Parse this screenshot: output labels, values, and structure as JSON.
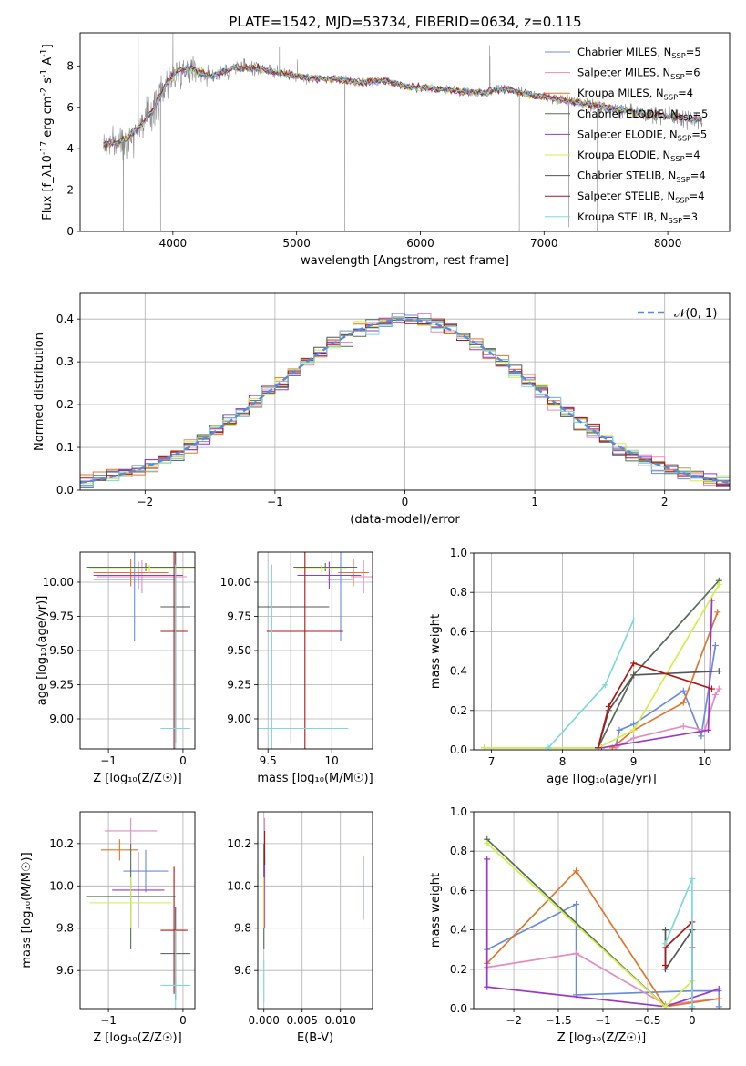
{
  "figure": {
    "title": "PLATE=1542, MJD=53734, FIBERID=0634, z=0.115"
  },
  "models": [
    {
      "name": "Chabrier MILES, N_{SSP}=5",
      "color": "#6a8cde"
    },
    {
      "name": "Salpeter MILES, N_{SSP}=6",
      "color": "#e58bbf"
    },
    {
      "name": "Kroupa MILES, N_{SSP}=4",
      "color": "#e0752a"
    },
    {
      "name": "Chabrier ELODIE, N_{SSP}=5",
      "color": "#546e59"
    },
    {
      "name": "Salpeter ELODIE, N_{SSP}=5",
      "color": "#9b38c7"
    },
    {
      "name": "Kroupa ELODIE, N_{SSP}=4",
      "color": "#d4ee4a"
    },
    {
      "name": "Chabrier STELIB, N_{SSP}=4",
      "color": "#555555"
    },
    {
      "name": "Salpeter STELIB, N_{SSP}=4",
      "color": "#b01515"
    },
    {
      "name": "Kroupa STELIB, N_{SSP}=3",
      "color": "#7dd8e0"
    }
  ],
  "chart_data": [
    {
      "id": "spectrum",
      "type": "line",
      "xlabel": "wavelength [Angstrom, rest frame]",
      "ylabel": "Flux [f_λ10^{-17} erg cm^{-2} s^{-1} A^{-1}]",
      "xlim": [
        3250,
        8500
      ],
      "ylim": [
        0,
        9.6
      ],
      "xticks": [
        4000,
        5000,
        6000,
        7000,
        8000
      ],
      "yticks": [
        0,
        2,
        4,
        6,
        8
      ],
      "grid": false,
      "legend": "top-right",
      "data_color": "#888888",
      "continuum": [
        [
          3450,
          4.2
        ],
        [
          3550,
          4.3
        ],
        [
          3650,
          4.6
        ],
        [
          3750,
          5.2
        ],
        [
          3850,
          6.0
        ],
        [
          3950,
          7.2
        ],
        [
          4050,
          7.8
        ],
        [
          4150,
          7.9
        ],
        [
          4300,
          7.5
        ],
        [
          4500,
          7.9
        ],
        [
          4700,
          7.9
        ],
        [
          4900,
          7.6
        ],
        [
          5100,
          7.4
        ],
        [
          5300,
          7.4
        ],
        [
          5500,
          7.2
        ],
        [
          5700,
          7.3
        ],
        [
          5900,
          7.0
        ],
        [
          6100,
          6.9
        ],
        [
          6300,
          6.8
        ],
        [
          6500,
          6.7
        ],
        [
          6700,
          6.9
        ],
        [
          6900,
          6.6
        ],
        [
          7100,
          6.4
        ],
        [
          7300,
          6.2
        ],
        [
          7500,
          6.0
        ],
        [
          7700,
          5.8
        ],
        [
          7900,
          5.6
        ],
        [
          8100,
          5.5
        ],
        [
          8300,
          5.4
        ]
      ],
      "noise_sigma": [
        [
          3400,
          0.8
        ],
        [
          3800,
          1.2
        ],
        [
          4300,
          0.6
        ],
        [
          5000,
          0.3
        ],
        [
          6000,
          0.15
        ],
        [
          7000,
          0.3
        ],
        [
          8300,
          0.6
        ]
      ],
      "spikes": [
        [
          3600,
          0
        ],
        [
          3900,
          0
        ],
        [
          5390,
          0
        ],
        [
          6800,
          0
        ],
        [
          7430,
          0
        ],
        [
          7200,
          0.2
        ],
        [
          6560,
          9.0
        ],
        [
          3720,
          9.4
        ],
        [
          4000,
          9.6
        ]
      ],
      "emission": [
        [
          4861,
          8.9
        ],
        [
          5007,
          8.3
        ],
        [
          6563,
          8.5
        ]
      ]
    },
    {
      "id": "residuals",
      "type": "histogram",
      "xlabel": "(data-model)/error",
      "ylabel": "Normed distribution",
      "xlim": [
        -2.5,
        2.5
      ],
      "ylim": [
        0,
        0.46
      ],
      "xticks": [
        -2,
        -1,
        0,
        1,
        2
      ],
      "yticks": [
        0.0,
        0.1,
        0.2,
        0.3,
        0.4
      ],
      "grid": true,
      "bin_width": 0.1,
      "curve_label": "𝒩(0, 1)",
      "curve_color": "#5b8bd6",
      "legend": "top-right"
    },
    {
      "id": "age_vs_Z",
      "type": "scatter",
      "xlabel": "Z [log₁₀(Z/Z☉)]",
      "ylabel": "age  [log₁₀(age/yr)]",
      "xlim": [
        -1.38,
        0.16
      ],
      "ylim": [
        8.78,
        10.22
      ],
      "xticks": [
        -1,
        0
      ],
      "yticks": [
        9.0,
        9.25,
        9.5,
        9.75,
        10.0
      ],
      "grid": true,
      "points": [
        {
          "model": 0,
          "x": -0.65,
          "xerr": 0.55,
          "y": 10.02,
          "yerr": 0.45
        },
        {
          "model": 1,
          "x": -0.55,
          "xerr": 0.6,
          "y": 10.04,
          "yerr": 0.12
        },
        {
          "model": 2,
          "x": -0.7,
          "xerr": 0.5,
          "y": 10.07,
          "yerr": 0.1
        },
        {
          "model": 3,
          "x": -0.5,
          "xerr": 0.8,
          "y": 10.11,
          "yerr": 0.03
        },
        {
          "model": 4,
          "x": -0.6,
          "xerr": 0.6,
          "y": 10.05,
          "yerr": 0.1
        },
        {
          "model": 5,
          "x": -0.45,
          "xerr": 0.8,
          "y": 10.1,
          "yerr": 0.03
        },
        {
          "model": 6,
          "x": -0.1,
          "xerr": 0.2,
          "y": 9.82,
          "yerr": 1.0
        },
        {
          "model": 7,
          "x": -0.12,
          "xerr": 0.18,
          "y": 9.64,
          "yerr": 1.0
        },
        {
          "model": 8,
          "x": -0.1,
          "xerr": 0.2,
          "y": 8.93,
          "yerr": 1.2
        }
      ]
    },
    {
      "id": "age_vs_mass",
      "type": "scatter",
      "xlabel": "mass [log₁₀(M/M☉)]",
      "ylabel": "",
      "xlim": [
        9.42,
        10.32
      ],
      "ylim": [
        8.78,
        10.22
      ],
      "xticks": [
        9.5,
        10.0
      ],
      "yticks": [
        9.0,
        9.25,
        9.5,
        9.75,
        10.0
      ],
      "grid": true,
      "points": [
        {
          "model": 0,
          "x": 10.07,
          "xerr": 0.1,
          "y": 10.02,
          "yerr": 0.45
        },
        {
          "model": 1,
          "x": 10.25,
          "xerr": 0.1,
          "y": 10.04,
          "yerr": 0.12
        },
        {
          "model": 2,
          "x": 10.17,
          "xerr": 0.12,
          "y": 10.07,
          "yerr": 0.1
        },
        {
          "model": 3,
          "x": 9.95,
          "xerr": 0.25,
          "y": 10.11,
          "yerr": 0.03
        },
        {
          "model": 4,
          "x": 9.98,
          "xerr": 0.25,
          "y": 10.05,
          "yerr": 0.1
        },
        {
          "model": 5,
          "x": 9.92,
          "xerr": 0.2,
          "y": 10.1,
          "yerr": 0.03
        },
        {
          "model": 6,
          "x": 9.68,
          "xerr": 0.3,
          "y": 9.82,
          "yerr": 1.0
        },
        {
          "model": 7,
          "x": 9.79,
          "xerr": 0.3,
          "y": 9.64,
          "yerr": 1.0
        },
        {
          "model": 8,
          "x": 9.53,
          "xerr": 0.6,
          "y": 8.93,
          "yerr": 1.2
        }
      ]
    },
    {
      "id": "mass_weight_vs_age",
      "type": "line",
      "xlabel": "age  [log₁₀(age/yr)]",
      "ylabel": "mass weight",
      "xlim": [
        6.75,
        10.35
      ],
      "ylim": [
        0,
        1.0
      ],
      "xticks": [
        7,
        8,
        9,
        10
      ],
      "yticks": [
        0.0,
        0.2,
        0.4,
        0.6,
        0.8,
        1.0
      ],
      "grid": true,
      "series": [
        {
          "model": 0,
          "points": [
            [
              8.75,
              0.02
            ],
            [
              8.8,
              0.1
            ],
            [
              9.0,
              0.13
            ],
            [
              9.7,
              0.3
            ],
            [
              9.95,
              0.07
            ],
            [
              10.15,
              0.53
            ]
          ]
        },
        {
          "model": 1,
          "points": [
            [
              8.75,
              0.01
            ],
            [
              9.0,
              0.06
            ],
            [
              9.7,
              0.12
            ],
            [
              10.0,
              0.1
            ],
            [
              10.15,
              0.28
            ],
            [
              10.2,
              0.31
            ]
          ]
        },
        {
          "model": 2,
          "points": [
            [
              8.7,
              0.01
            ],
            [
              9.0,
              0.1
            ],
            [
              9.7,
              0.24
            ],
            [
              10.18,
              0.7
            ]
          ]
        },
        {
          "model": 3,
          "points": [
            [
              6.9,
              0.01
            ],
            [
              8.5,
              0.01
            ],
            [
              9.0,
              0.38
            ],
            [
              10.2,
              0.86
            ]
          ]
        },
        {
          "model": 4,
          "points": [
            [
              8.55,
              0.01
            ],
            [
              10.05,
              0.1
            ],
            [
              10.1,
              0.76
            ]
          ]
        },
        {
          "model": 5,
          "points": [
            [
              6.9,
              0.01
            ],
            [
              8.5,
              0.01
            ],
            [
              9.0,
              0.1
            ],
            [
              10.2,
              0.84
            ]
          ]
        },
        {
          "model": 6,
          "points": [
            [
              8.5,
              0.01
            ],
            [
              8.65,
              0.2
            ],
            [
              9.0,
              0.38
            ],
            [
              10.2,
              0.4
            ]
          ]
        },
        {
          "model": 7,
          "points": [
            [
              8.5,
              0.01
            ],
            [
              8.65,
              0.22
            ],
            [
              9.0,
              0.44
            ],
            [
              10.1,
              0.31
            ]
          ]
        },
        {
          "model": 8,
          "points": [
            [
              7.8,
              0.01
            ],
            [
              8.6,
              0.33
            ],
            [
              9.0,
              0.66
            ]
          ]
        }
      ]
    },
    {
      "id": "mass_vs_Z",
      "type": "scatter",
      "xlabel": "Z [log₁₀(Z/Z☉)]",
      "ylabel": "mass [log₁₀(M/M☉)]",
      "xlim": [
        -1.38,
        0.16
      ],
      "ylim": [
        9.42,
        10.35
      ],
      "xticks": [
        -1,
        0
      ],
      "yticks": [
        9.6,
        9.8,
        10.0,
        10.2
      ],
      "grid": true,
      "points": [
        {
          "model": 0,
          "x": -0.5,
          "xerr": 0.3,
          "y": 10.07,
          "yerr": 0.1
        },
        {
          "model": 1,
          "x": -0.7,
          "xerr": 0.35,
          "y": 10.26,
          "yerr": 0.06
        },
        {
          "model": 2,
          "x": -0.85,
          "xerr": 0.25,
          "y": 10.17,
          "yerr": 0.05
        },
        {
          "model": 3,
          "x": -0.7,
          "xerr": 0.6,
          "y": 9.95,
          "yerr": 0.25
        },
        {
          "model": 4,
          "x": -0.6,
          "xerr": 0.35,
          "y": 9.98,
          "yerr": 0.18
        },
        {
          "model": 5,
          "x": -0.7,
          "xerr": 0.55,
          "y": 9.92,
          "yerr": 0.12
        },
        {
          "model": 6,
          "x": -0.1,
          "xerr": 0.2,
          "y": 9.68,
          "yerr": 0.22
        },
        {
          "model": 7,
          "x": -0.12,
          "xerr": 0.18,
          "y": 9.79,
          "yerr": 0.3
        },
        {
          "model": 8,
          "x": -0.1,
          "xerr": 0.2,
          "y": 9.53,
          "yerr": 0.26
        }
      ]
    },
    {
      "id": "mass_vs_ebv",
      "type": "scatter",
      "xlabel": "E(B-V)",
      "ylabel": "",
      "xlim": [
        -0.0008,
        0.0142
      ],
      "ylim": [
        9.42,
        10.35
      ],
      "xticks": [
        0.0,
        0.005,
        0.01
      ],
      "xticklabels": [
        "0.000",
        "0.005",
        "0.010"
      ],
      "yticks": [
        9.6,
        9.8,
        10.0,
        10.2
      ],
      "grid": true,
      "points": [
        {
          "model": 0,
          "x": 0.013,
          "xerr": 0,
          "y": 9.99,
          "yerr": 0.15
        },
        {
          "model": 1,
          "x": 0.0001,
          "xerr": 0,
          "y": 10.26,
          "yerr": 0.06
        },
        {
          "model": 3,
          "x": 0.0,
          "xerr": 0,
          "y": 9.95,
          "yerr": 0.25
        },
        {
          "model": 4,
          "x": 0.0001,
          "xerr": 0,
          "y": 9.98,
          "yerr": 0.18
        },
        {
          "model": 5,
          "x": 0.0,
          "xerr": 0,
          "y": 9.92,
          "yerr": 0.12
        },
        {
          "model": 7,
          "x": 0.0001,
          "xerr": 0,
          "y": 10.18,
          "yerr": 0.08
        },
        {
          "model": 8,
          "x": 0.0,
          "xerr": 0,
          "y": 9.55,
          "yerr": 0.1
        }
      ]
    },
    {
      "id": "mass_weight_vs_Z",
      "type": "line",
      "xlabel": "Z [log₁₀(Z/Z☉)]",
      "ylabel": "mass weight",
      "xlim": [
        -2.45,
        0.42
      ],
      "ylim": [
        0,
        1.0
      ],
      "xticks": [
        -2.0,
        -1.5,
        -1.0,
        -0.5,
        0.0
      ],
      "yticks": [
        0.0,
        0.2,
        0.4,
        0.6,
        0.8,
        1.0
      ],
      "grid": true,
      "series": [
        {
          "model": 0,
          "points": [
            [
              -2.3,
              0.3
            ],
            [
              -1.3,
              0.53
            ],
            [
              -1.3,
              0.07
            ],
            [
              0.0,
              0.09
            ],
            [
              0.3,
              0.09
            ],
            [
              0.3,
              0.01
            ]
          ]
        },
        {
          "model": 1,
          "points": [
            [
              -2.3,
              0.21
            ],
            [
              -1.3,
              0.28
            ],
            [
              -0.3,
              0.02
            ],
            [
              0.3,
              0.05
            ]
          ]
        },
        {
          "model": 2,
          "points": [
            [
              -2.3,
              0.23
            ],
            [
              -1.3,
              0.7
            ],
            [
              -0.3,
              0.01
            ],
            [
              0.3,
              0.05
            ]
          ]
        },
        {
          "model": 3,
          "points": [
            [
              -2.3,
              0.86
            ],
            [
              -0.3,
              0.01
            ]
          ]
        },
        {
          "model": 4,
          "points": [
            [
              -2.3,
              0.76
            ],
            [
              -2.3,
              0.11
            ],
            [
              -0.3,
              0.01
            ],
            [
              0.3,
              0.1
            ]
          ]
        },
        {
          "model": 5,
          "points": [
            [
              -2.3,
              0.84
            ],
            [
              -0.3,
              0.01
            ],
            [
              0.0,
              0.14
            ]
          ]
        },
        {
          "model": 6,
          "points": [
            [
              -0.3,
              0.4
            ],
            [
              -0.3,
              0.2
            ],
            [
              0.0,
              0.4
            ],
            [
              0.0,
              0.0
            ]
          ]
        },
        {
          "model": 7,
          "points": [
            [
              -0.3,
              0.22
            ],
            [
              -0.3,
              0.31
            ],
            [
              0.0,
              0.44
            ],
            [
              0.0,
              0.31
            ]
          ]
        },
        {
          "model": 8,
          "points": [
            [
              -0.3,
              0.33
            ],
            [
              0.0,
              0.66
            ],
            [
              0.0,
              0.01
            ]
          ]
        }
      ]
    }
  ]
}
